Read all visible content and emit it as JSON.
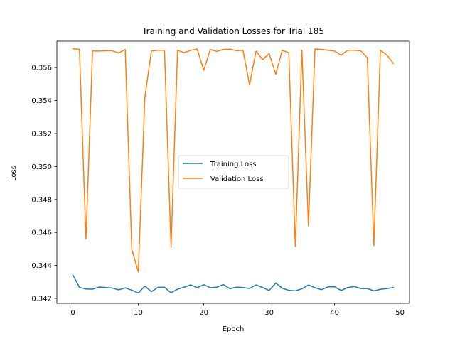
{
  "chart_data": {
    "type": "line",
    "title": "Training and Validation Losses for Trial 185",
    "xlabel": "Epoch",
    "ylabel": "Loss",
    "xlim": [
      -2.45,
      51.45
    ],
    "ylim": [
      0.3417,
      0.3576
    ],
    "xticks": [
      0,
      10,
      20,
      30,
      40,
      50
    ],
    "yticks": [
      0.342,
      0.344,
      0.346,
      0.348,
      0.35,
      0.352,
      0.354,
      0.356
    ],
    "ytick_labels": [
      "0.342",
      "0.344",
      "0.346",
      "0.348",
      "0.350",
      "0.352",
      "0.354",
      "0.356"
    ],
    "grid": false,
    "legend_position": "center-right",
    "x": [
      0,
      1,
      2,
      3,
      4,
      5,
      6,
      7,
      8,
      9,
      10,
      11,
      12,
      13,
      14,
      15,
      16,
      17,
      18,
      19,
      20,
      21,
      22,
      23,
      24,
      25,
      26,
      27,
      28,
      29,
      30,
      31,
      32,
      33,
      34,
      35,
      36,
      37,
      38,
      39,
      40,
      41,
      42,
      43,
      44,
      45,
      46,
      47,
      48,
      49
    ],
    "series": [
      {
        "name": "Training Loss",
        "color": "#1f77b4",
        "values": [
          0.34342,
          0.34267,
          0.34257,
          0.34256,
          0.34269,
          0.34266,
          0.34263,
          0.34252,
          0.34264,
          0.3425,
          0.34233,
          0.34275,
          0.34241,
          0.34267,
          0.34268,
          0.34234,
          0.34256,
          0.34268,
          0.34282,
          0.34265,
          0.34283,
          0.34265,
          0.34268,
          0.34284,
          0.34259,
          0.34268,
          0.34266,
          0.3426,
          0.34282,
          0.34266,
          0.34248,
          0.34293,
          0.34262,
          0.34249,
          0.34246,
          0.34258,
          0.34281,
          0.34265,
          0.34253,
          0.3427,
          0.34271,
          0.34248,
          0.34266,
          0.34272,
          0.3426,
          0.3426,
          0.34246,
          0.34255,
          0.3426,
          0.34266
        ]
      },
      {
        "name": "Validation Loss",
        "color": "#ff7f0e",
        "values": [
          0.35715,
          0.3571,
          0.3456,
          0.357,
          0.357,
          0.35702,
          0.35702,
          0.35688,
          0.3571,
          0.34498,
          0.3436,
          0.3542,
          0.357,
          0.35705,
          0.35705,
          0.3451,
          0.35705,
          0.3569,
          0.35705,
          0.35712,
          0.35583,
          0.3571,
          0.35698,
          0.3571,
          0.35712,
          0.35702,
          0.35705,
          0.35495,
          0.357,
          0.35648,
          0.35685,
          0.3556,
          0.35705,
          0.3569,
          0.34515,
          0.35705,
          0.3464,
          0.35712,
          0.3571,
          0.35705,
          0.357,
          0.35675,
          0.35705,
          0.35705,
          0.35702,
          0.3566,
          0.3452,
          0.35705,
          0.35675,
          0.35625
        ]
      }
    ]
  }
}
